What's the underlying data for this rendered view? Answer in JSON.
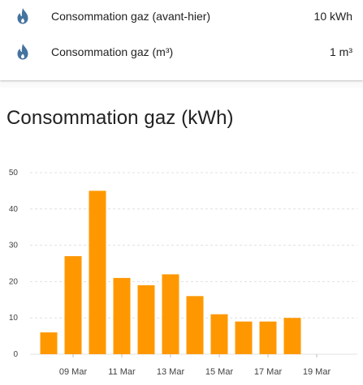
{
  "entities": [
    {
      "name": "Consommation gaz (avant-hier)",
      "state": "10 kWh",
      "icon": "fire-icon",
      "icon_color": "#44739e"
    },
    {
      "name": "Consommation gaz (m³)",
      "state": "1 m³",
      "icon": "fire-icon",
      "icon_color": "#44739e"
    }
  ],
  "chart_card": {
    "title": "Consommation gaz (kWh)"
  },
  "chart_data": {
    "type": "bar",
    "title": "Consommation gaz (kWh)",
    "x_tick_labels": [
      "09 Mar",
      "11 Mar",
      "13 Mar",
      "15 Mar",
      "17 Mar",
      "19 Mar"
    ],
    "y_ticks": [
      0,
      10,
      20,
      30,
      40,
      50
    ],
    "ylim": [
      0,
      50
    ],
    "grid": true,
    "bar_color": "#ff9800",
    "categories": [
      "08 Mar",
      "09 Mar",
      "10 Mar",
      "11 Mar",
      "12 Mar",
      "13 Mar",
      "14 Mar",
      "15 Mar",
      "16 Mar",
      "17 Mar",
      "18 Mar",
      "19 Mar"
    ],
    "values": [
      6,
      27,
      45,
      21,
      19,
      22,
      16,
      11,
      9,
      9,
      10,
      null
    ]
  }
}
